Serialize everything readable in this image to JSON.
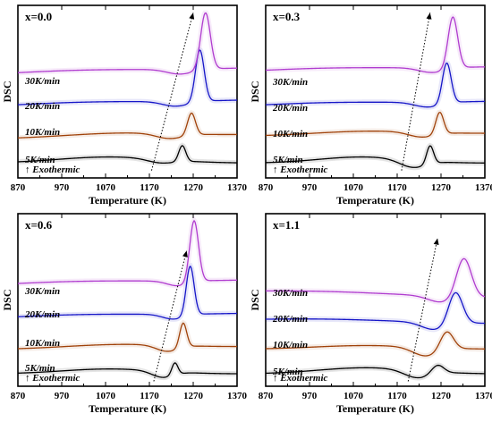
{
  "figure": {
    "ylabel": "DSC",
    "xlabel": "Temperature (K)",
    "exothermic_label": "↑ Exothermic",
    "x_ticks": [
      "870",
      "970",
      "1070",
      "1170",
      "1270",
      "1370"
    ]
  },
  "colors": {
    "5K/min": "#000000",
    "10K/min": "#a0420a",
    "20K/min": "#1717c8",
    "30K/min": "#b03ccf"
  },
  "chart_data": [
    {
      "type": "line",
      "title": "x=0.0",
      "xlabel": "Temperature (K)",
      "ylabel": "DSC",
      "xlim": [
        870,
        1370
      ],
      "series": [
        {
          "name": "5K/min",
          "baseline": 0.12,
          "peak_T": 1245,
          "peak_h": 0.13,
          "peak_w": 8,
          "dip_T": 1195,
          "dip_h": 0.03,
          "dip_w": 30,
          "hump_h": 0.05,
          "hump_T": 1080,
          "hump_w": 120,
          "tail": 0.0
        },
        {
          "name": "10K/min",
          "baseline": 0.32,
          "peak_T": 1266,
          "peak_h": 0.18,
          "peak_w": 9,
          "dip_T": 1215,
          "dip_h": 0.04,
          "dip_w": 30,
          "hump_h": 0.03,
          "hump_T": 1100,
          "hump_w": 120,
          "tail": 0.03
        },
        {
          "name": "20K/min",
          "baseline": 0.58,
          "peak_T": 1285,
          "peak_h": 0.42,
          "peak_w": 10,
          "dip_T": 1230,
          "dip_h": 0.04,
          "dip_w": 30,
          "hump_h": 0.02,
          "hump_T": 1000,
          "hump_w": 150,
          "tail": 0.05
        },
        {
          "name": "30K/min",
          "baseline": 0.84,
          "peak_T": 1298,
          "peak_h": 0.46,
          "peak_w": 11,
          "dip_T": 1240,
          "dip_h": 0.04,
          "dip_w": 30,
          "hump_h": 0.02,
          "hump_T": 1000,
          "hump_w": 150,
          "tail": 0.05
        }
      ],
      "trend_arrow": {
        "from": [
          1175,
          0.06
        ],
        "to": [
          1270,
          1.34
        ]
      }
    },
    {
      "type": "line",
      "title": "x=0.3",
      "xlabel": "Temperature (K)",
      "ylabel": "DSC",
      "xlim": [
        870,
        1370
      ],
      "series": [
        {
          "name": "5K/min",
          "baseline": 0.12,
          "peak_T": 1245,
          "peak_h": 0.15,
          "peak_w": 8,
          "dip_T": 1205,
          "dip_h": 0.06,
          "dip_w": 30,
          "hump_h": 0.05,
          "hump_T": 1090,
          "hump_w": 100,
          "tail": 0.0
        },
        {
          "name": "10K/min",
          "baseline": 0.34,
          "peak_T": 1267,
          "peak_h": 0.18,
          "peak_w": 9,
          "dip_T": 1225,
          "dip_h": 0.04,
          "dip_w": 30,
          "hump_h": 0.03,
          "hump_T": 1100,
          "hump_w": 120,
          "tail": 0.02
        },
        {
          "name": "20K/min",
          "baseline": 0.58,
          "peak_T": 1283,
          "peak_h": 0.33,
          "peak_w": 10,
          "dip_T": 1240,
          "dip_h": 0.04,
          "dip_w": 30,
          "hump_h": 0.02,
          "hump_T": 1000,
          "hump_w": 150,
          "tail": 0.04
        },
        {
          "name": "30K/min",
          "baseline": 0.86,
          "peak_T": 1297,
          "peak_h": 0.42,
          "peak_w": 11,
          "dip_T": 1250,
          "dip_h": 0.04,
          "dip_w": 30,
          "hump_h": 0.02,
          "hump_T": 1000,
          "hump_w": 150,
          "tail": 0.04
        }
      ],
      "trend_arrow": {
        "from": [
          1180,
          0.06
        ],
        "to": [
          1245,
          1.34
        ]
      }
    },
    {
      "type": "line",
      "title": "x=0.6",
      "xlabel": "Temperature (K)",
      "ylabel": "DSC",
      "xlim": [
        870,
        1370
      ],
      "series": [
        {
          "name": "5K/min",
          "baseline": 0.1,
          "peak_T": 1228,
          "peak_h": 0.1,
          "peak_w": 7,
          "dip_T": 1200,
          "dip_h": 0.05,
          "dip_w": 25,
          "hump_h": 0.04,
          "hump_T": 1080,
          "hump_w": 110,
          "tail": 0.0
        },
        {
          "name": "10K/min",
          "baseline": 0.3,
          "peak_T": 1247,
          "peak_h": 0.2,
          "peak_w": 8,
          "dip_T": 1210,
          "dip_h": 0.05,
          "dip_w": 25,
          "hump_h": 0.03,
          "hump_T": 1100,
          "hump_w": 120,
          "tail": 0.02
        },
        {
          "name": "20K/min",
          "baseline": 0.55,
          "peak_T": 1263,
          "peak_h": 0.4,
          "peak_w": 9,
          "dip_T": 1225,
          "dip_h": 0.04,
          "dip_w": 25,
          "hump_h": 0.02,
          "hump_T": 1000,
          "hump_w": 150,
          "tail": 0.04
        },
        {
          "name": "30K/min",
          "baseline": 0.82,
          "peak_T": 1272,
          "peak_h": 0.5,
          "peak_w": 10,
          "dip_T": 1235,
          "dip_h": 0.04,
          "dip_w": 25,
          "hump_h": 0.02,
          "hump_T": 1000,
          "hump_w": 150,
          "tail": 0.04
        }
      ],
      "trend_arrow": {
        "from": [
          1180,
          0.04
        ],
        "to": [
          1255,
          1.1
        ]
      }
    },
    {
      "type": "line",
      "title": "x=1.1",
      "xlabel": "Temperature (K)",
      "ylabel": "DSC",
      "xlim": [
        870,
        1370
      ],
      "series": [
        {
          "name": "5K/min",
          "baseline": 0.1,
          "peak_T": 1262,
          "peak_h": 0.07,
          "peak_w": 14,
          "dip_T": 1215,
          "dip_h": 0.06,
          "dip_w": 30,
          "hump_h": 0.05,
          "hump_T": 1100,
          "hump_w": 110,
          "tail": 0.0
        },
        {
          "name": "10K/min",
          "baseline": 0.3,
          "peak_T": 1283,
          "peak_h": 0.15,
          "peak_w": 15,
          "dip_T": 1235,
          "dip_h": 0.07,
          "dip_w": 30,
          "hump_h": 0.03,
          "hump_T": 1100,
          "hump_w": 120,
          "tail": 0.0
        },
        {
          "name": "20K/min",
          "baseline": 0.53,
          "peak_T": 1303,
          "peak_h": 0.26,
          "peak_w": 16,
          "dip_T": 1255,
          "dip_h": 0.06,
          "dip_w": 30,
          "hump_h": 0.02,
          "hump_T": 1000,
          "hump_w": 150,
          "tail": -0.02
        },
        {
          "name": "30K/min",
          "baseline": 0.76,
          "peak_T": 1322,
          "peak_h": 0.32,
          "peak_w": 17,
          "dip_T": 1270,
          "dip_h": 0.05,
          "dip_w": 30,
          "hump_h": 0.02,
          "hump_T": 1000,
          "hump_w": 150,
          "tail": -0.04
        }
      ],
      "trend_arrow": {
        "from": [
          1195,
          0.04
        ],
        "to": [
          1262,
          1.2
        ]
      }
    }
  ]
}
